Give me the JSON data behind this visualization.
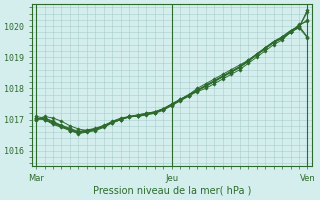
{
  "title": "",
  "xlabel": "Pression niveau de la mer( hPa )",
  "ylabel": "",
  "bg_color": "#d4eeee",
  "grid_color": "#aacccc",
  "line_color": "#2d6b2d",
  "ylim": [
    1015.5,
    1020.7
  ],
  "xtick_labels": [
    "Mar",
    "Jeu",
    "Ven"
  ],
  "xtick_positions": [
    0,
    16,
    32
  ],
  "ytick_values": [
    1016,
    1017,
    1018,
    1019,
    1020
  ],
  "n_points": 33,
  "series": [
    [
      1017.05,
      1017.0,
      1016.85,
      1016.75,
      1016.65,
      1016.55,
      1016.6,
      1016.65,
      1016.75,
      1016.9,
      1017.0,
      1017.1,
      1017.1,
      1017.15,
      1017.2,
      1017.3,
      1017.45,
      1017.6,
      1017.75,
      1017.9,
      1018.0,
      1018.15,
      1018.3,
      1018.45,
      1018.6,
      1018.8,
      1019.0,
      1019.2,
      1019.4,
      1019.55,
      1019.8,
      1020.05,
      1020.15
    ],
    [
      1017.1,
      1017.05,
      1016.95,
      1016.8,
      1016.7,
      1016.6,
      1016.65,
      1016.7,
      1016.8,
      1016.92,
      1017.0,
      1017.1,
      1017.15,
      1017.2,
      1017.25,
      1017.35,
      1017.5,
      1017.65,
      1017.8,
      1017.95,
      1018.1,
      1018.25,
      1018.4,
      1018.55,
      1018.7,
      1018.9,
      1019.1,
      1019.3,
      1019.5,
      1019.65,
      1019.85,
      1020.0,
      1020.2
    ],
    [
      1017.0,
      1017.1,
      1017.05,
      1016.95,
      1016.8,
      1016.7,
      1016.65,
      1016.7,
      1016.8,
      1016.95,
      1017.05,
      1017.1,
      1017.15,
      1017.2,
      1017.25,
      1017.35,
      1017.5,
      1017.65,
      1017.8,
      1018.0,
      1018.15,
      1018.3,
      1018.45,
      1018.6,
      1018.75,
      1018.9,
      1019.1,
      1019.3,
      1019.5,
      1019.65,
      1019.85,
      1020.0,
      1019.65
    ],
    [
      1017.05,
      1017.0,
      1016.9,
      1016.8,
      1016.65,
      1016.58,
      1016.62,
      1016.68,
      1016.78,
      1016.9,
      1017.0,
      1017.08,
      1017.12,
      1017.18,
      1017.22,
      1017.32,
      1017.48,
      1017.62,
      1017.77,
      1017.93,
      1018.07,
      1018.22,
      1018.37,
      1018.52,
      1018.67,
      1018.87,
      1019.07,
      1019.27,
      1019.47,
      1019.6,
      1019.8,
      1019.95,
      1019.62
    ],
    [
      1017.0,
      1017.05,
      1016.92,
      1016.82,
      1016.72,
      1016.62,
      1016.67,
      1016.72,
      1016.82,
      1016.93,
      1017.02,
      1017.1,
      1017.13,
      1017.19,
      1017.23,
      1017.33,
      1017.49,
      1017.63,
      1017.78,
      1017.94,
      1018.08,
      1018.23,
      1018.38,
      1018.53,
      1018.68,
      1018.88,
      1019.08,
      1019.28,
      1019.48,
      1019.62,
      1019.82,
      1019.97,
      1020.45
    ],
    [
      1017.02,
      1017.02,
      1016.88,
      1016.78,
      1016.68,
      1016.58,
      1016.63,
      1016.68,
      1016.78,
      1016.91,
      1017.01,
      1017.09,
      1017.12,
      1017.18,
      1017.22,
      1017.32,
      1017.48,
      1017.62,
      1017.77,
      1017.93,
      1018.07,
      1018.22,
      1018.37,
      1018.52,
      1018.67,
      1018.87,
      1019.07,
      1019.27,
      1019.47,
      1019.6,
      1019.8,
      1019.95,
      1020.52
    ]
  ]
}
